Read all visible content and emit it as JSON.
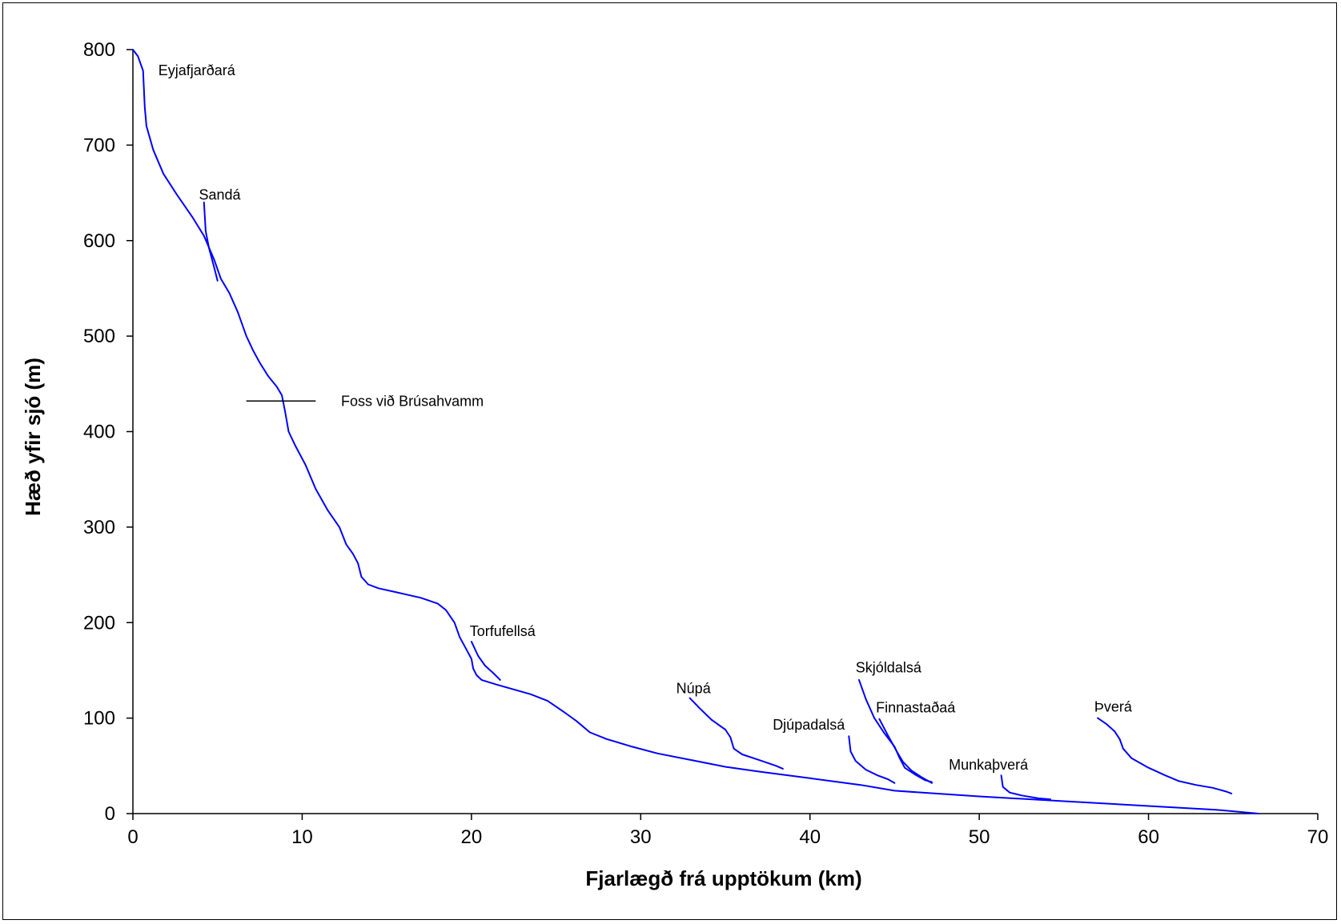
{
  "chart_data": {
    "type": "line",
    "xlabel": "Fjarlægð frá upptökum (km)",
    "ylabel": "Hæð yfir sjó (m)",
    "xlim": [
      0,
      70
    ],
    "ylim": [
      0,
      800
    ],
    "x_ticks": [
      "0",
      "10",
      "20",
      "30",
      "40",
      "50",
      "60",
      "70"
    ],
    "y_ticks": [
      "0",
      "100",
      "200",
      "300",
      "400",
      "500",
      "600",
      "700",
      "800"
    ],
    "grid": false,
    "line_color": "#0000ff",
    "series": [
      {
        "name": "Eyjafjarðará",
        "points": [
          [
            0,
            800
          ],
          [
            0.3,
            793
          ],
          [
            0.6,
            778
          ],
          [
            0.7,
            740
          ],
          [
            0.8,
            720
          ],
          [
            1.2,
            695
          ],
          [
            1.8,
            670
          ],
          [
            2.6,
            648
          ],
          [
            3.5,
            625
          ],
          [
            4.2,
            605
          ],
          [
            4.8,
            580
          ],
          [
            5.2,
            560
          ],
          [
            5.7,
            545
          ],
          [
            6.2,
            525
          ],
          [
            6.7,
            500
          ],
          [
            7.1,
            485
          ],
          [
            7.5,
            472
          ],
          [
            8.0,
            458
          ],
          [
            8.5,
            447
          ],
          [
            8.8,
            438
          ],
          [
            9.0,
            420
          ],
          [
            9.2,
            400
          ],
          [
            9.6,
            385
          ],
          [
            10.2,
            365
          ],
          [
            10.8,
            340
          ],
          [
            11.5,
            318
          ],
          [
            12.2,
            300
          ],
          [
            12.6,
            282
          ],
          [
            13.0,
            272
          ],
          [
            13.3,
            262
          ],
          [
            13.5,
            248
          ],
          [
            13.9,
            240
          ],
          [
            14.5,
            236
          ],
          [
            15.5,
            232
          ],
          [
            17.0,
            226
          ],
          [
            18.0,
            220
          ],
          [
            18.5,
            213
          ],
          [
            19.0,
            200
          ],
          [
            19.3,
            185
          ],
          [
            19.7,
            172
          ],
          [
            20.0,
            162
          ],
          [
            20.1,
            152
          ],
          [
            20.3,
            145
          ],
          [
            20.6,
            140
          ],
          [
            21.5,
            135
          ],
          [
            22.5,
            130
          ],
          [
            23.5,
            125
          ],
          [
            24.5,
            118
          ],
          [
            25.5,
            106
          ],
          [
            26.2,
            97
          ],
          [
            27.0,
            85
          ],
          [
            28.0,
            78
          ],
          [
            29.5,
            70
          ],
          [
            31.0,
            63
          ],
          [
            33.0,
            56
          ],
          [
            35.0,
            49
          ],
          [
            37.0,
            44
          ],
          [
            40.0,
            37
          ],
          [
            43.0,
            30
          ],
          [
            45.0,
            24
          ],
          [
            50.0,
            18
          ],
          [
            55.0,
            13
          ],
          [
            60.0,
            8
          ],
          [
            64.0,
            4
          ],
          [
            66.5,
            0
          ]
        ]
      },
      {
        "name": "Sandá",
        "points": [
          [
            4.2,
            640
          ],
          [
            4.3,
            610
          ],
          [
            4.5,
            592
          ],
          [
            4.8,
            572
          ],
          [
            5.0,
            558
          ]
        ]
      },
      {
        "name": "Torfufellsá",
        "points": [
          [
            20.0,
            180
          ],
          [
            20.4,
            165
          ],
          [
            20.8,
            155
          ],
          [
            21.3,
            147
          ],
          [
            21.7,
            140
          ]
        ]
      },
      {
        "name": "Núpá",
        "points": [
          [
            32.9,
            121
          ],
          [
            33.5,
            110
          ],
          [
            34.2,
            98
          ],
          [
            35.0,
            88
          ],
          [
            35.3,
            80
          ],
          [
            35.5,
            68
          ],
          [
            36.0,
            62
          ],
          [
            37.0,
            56
          ],
          [
            38.0,
            50
          ],
          [
            38.4,
            47
          ]
        ]
      },
      {
        "name": "Djúpadalsá",
        "points": [
          [
            42.3,
            81
          ],
          [
            42.4,
            65
          ],
          [
            42.7,
            55
          ],
          [
            43.3,
            46
          ],
          [
            44.0,
            40
          ],
          [
            44.6,
            36
          ],
          [
            45.0,
            32
          ]
        ]
      },
      {
        "name": "Skjóldalsá",
        "points": [
          [
            42.9,
            140
          ],
          [
            43.3,
            120
          ],
          [
            43.8,
            100
          ],
          [
            44.4,
            84
          ],
          [
            45.0,
            70
          ],
          [
            45.3,
            58
          ],
          [
            45.6,
            48
          ],
          [
            46.2,
            41
          ],
          [
            46.8,
            35
          ],
          [
            47.2,
            33
          ]
        ]
      },
      {
        "name": "Finnastaðaá",
        "points": [
          [
            44.1,
            99
          ],
          [
            44.6,
            82
          ],
          [
            45.1,
            66
          ],
          [
            45.5,
            54
          ],
          [
            46.0,
            45
          ],
          [
            46.6,
            38
          ],
          [
            47.2,
            32
          ]
        ]
      },
      {
        "name": "Munkaþverá",
        "points": [
          [
            51.3,
            40
          ],
          [
            51.4,
            28
          ],
          [
            51.8,
            22
          ],
          [
            52.5,
            19
          ],
          [
            53.5,
            16
          ],
          [
            54.2,
            15
          ]
        ]
      },
      {
        "name": "Þverá",
        "points": [
          [
            57.0,
            100
          ],
          [
            57.5,
            94
          ],
          [
            58.0,
            86
          ],
          [
            58.3,
            78
          ],
          [
            58.5,
            68
          ],
          [
            59.0,
            58
          ],
          [
            60.0,
            48
          ],
          [
            61.0,
            40
          ],
          [
            61.8,
            34
          ],
          [
            62.8,
            30
          ],
          [
            63.8,
            27
          ],
          [
            64.6,
            23
          ],
          [
            64.9,
            21
          ]
        ]
      }
    ],
    "annotations": [
      {
        "text": "Eyjafjarðará",
        "x": 1.5,
        "y": 773
      },
      {
        "text": "Sandá",
        "x": 3.9,
        "y": 643
      },
      {
        "text": "Foss við Brúsahvamm",
        "x": 12.3,
        "y": 427
      },
      {
        "text": "Torfufellsá",
        "x": 19.9,
        "y": 186
      },
      {
        "text": "Núpá",
        "x": 32.1,
        "y": 126
      },
      {
        "text": "Skjóldalsá",
        "x": 42.7,
        "y": 148
      },
      {
        "text": "Finnastaðaá",
        "x": 43.9,
        "y": 106
      },
      {
        "text": "Djúpadalsá",
        "x": 37.8,
        "y": 88
      },
      {
        "text": "Munkaþverá",
        "x": 48.2,
        "y": 46
      },
      {
        "text": "Þverá",
        "x": 56.8,
        "y": 107
      }
    ],
    "marker": {
      "label": "Foss við Brúsahvamm",
      "x_from": 6.7,
      "x_to": 10.8,
      "y": 432
    }
  }
}
